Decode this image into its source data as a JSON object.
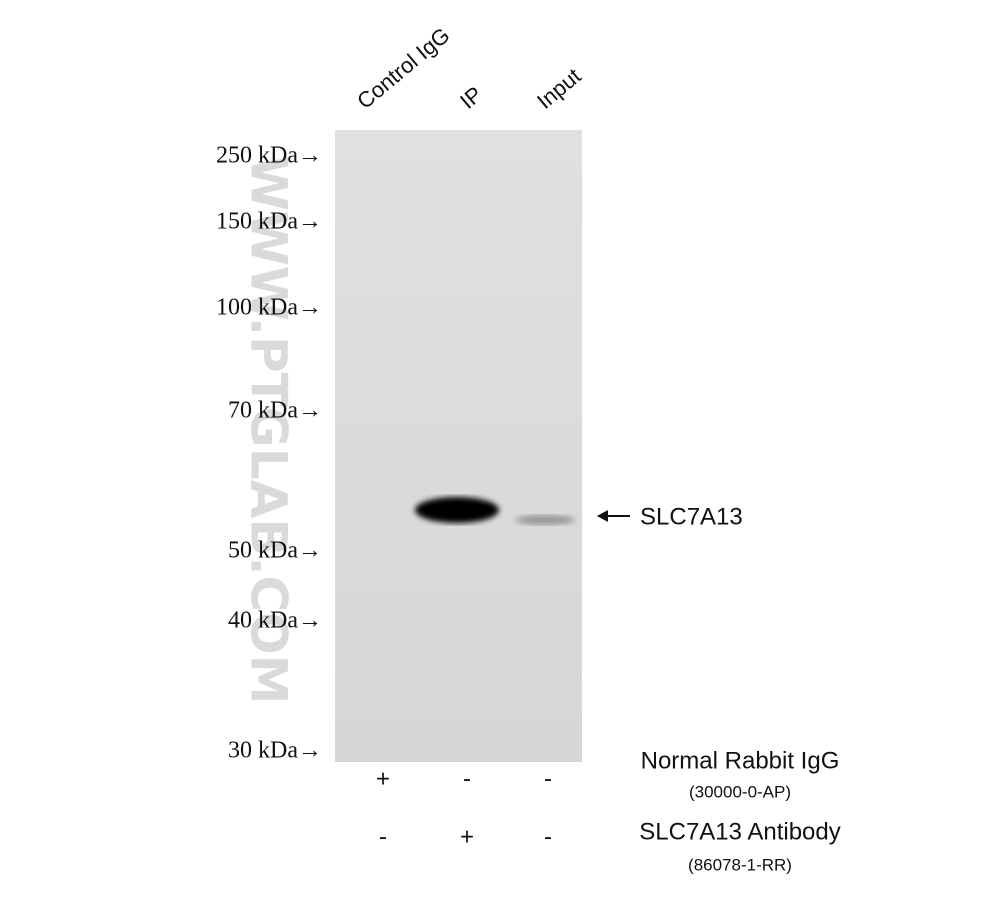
{
  "lanes": [
    "Control IgG",
    "IP",
    "Input"
  ],
  "markers": [
    "250 kDa→",
    "150 kDa→",
    "100 kDa→",
    "70 kDa→",
    "50 kDa→",
    "40 kDa→",
    "30 kDa→"
  ],
  "band_label": "SLC7A13",
  "watermark": "WWW.PTGLAB.COM",
  "conditions": [
    {
      "name": "Normal Rabbit IgG",
      "catalog": "(30000-0-AP)",
      "signs": [
        "+",
        "-",
        "-"
      ]
    },
    {
      "name": "SLC7A13 Antibody",
      "catalog": "(86078-1-RR)",
      "signs": [
        "-",
        "+",
        "-"
      ]
    }
  ]
}
